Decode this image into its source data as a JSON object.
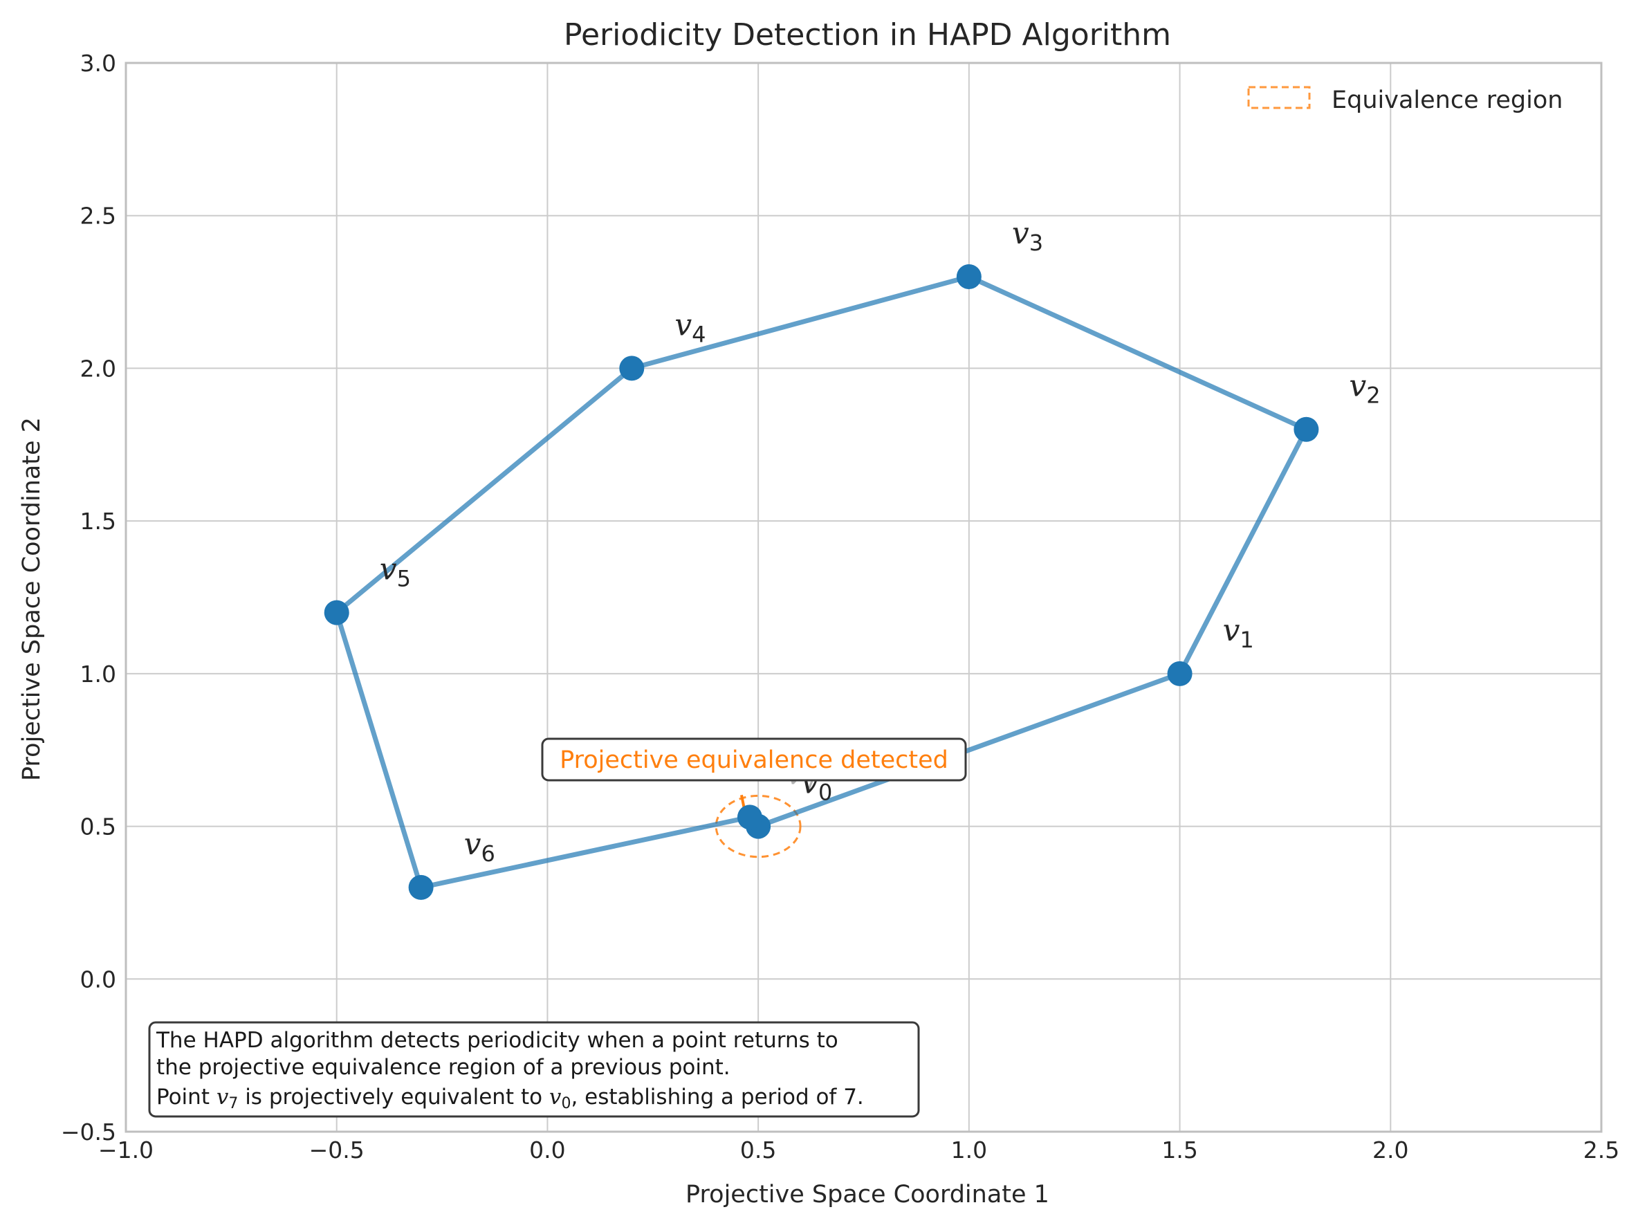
{
  "chart_data": {
    "type": "line",
    "title": "Periodicity Detection in HAPD Algorithm",
    "xlabel": "Projective Space Coordinate 1",
    "ylabel": "Projective Space Coordinate 2",
    "xlim": [
      -1.0,
      2.5
    ],
    "ylim": [
      -0.5,
      3.0
    ],
    "xticks": [
      "−1.0",
      "−0.5",
      "0.0",
      "0.5",
      "1.0",
      "1.5",
      "2.0",
      "2.5"
    ],
    "yticks": [
      "−0.5",
      "0.0",
      "0.5",
      "1.0",
      "1.5",
      "2.0",
      "2.5",
      "3.0"
    ],
    "grid": true,
    "legend_position": "top-right",
    "series": [
      {
        "color": "#1f77b4",
        "points": [
          {
            "label": "v",
            "sub": "0",
            "x": 0.5,
            "y": 0.5
          },
          {
            "label": "v",
            "sub": "1",
            "x": 1.5,
            "y": 1.0
          },
          {
            "label": "v",
            "sub": "2",
            "x": 1.8,
            "y": 1.8
          },
          {
            "label": "v",
            "sub": "3",
            "x": 1.0,
            "y": 2.3
          },
          {
            "label": "v",
            "sub": "4",
            "x": 0.2,
            "y": 2.0
          },
          {
            "label": "v",
            "sub": "5",
            "x": -0.5,
            "y": 1.2
          },
          {
            "label": "v",
            "sub": "6",
            "x": -0.3,
            "y": 0.3
          },
          {
            "label": "v",
            "sub": "7",
            "x": 0.48,
            "y": 0.53
          }
        ]
      }
    ],
    "equivalence_region": {
      "center": [
        0.5,
        0.5
      ],
      "radius": 0.1,
      "color": "#ff7f0e",
      "legend_label": "Equivalence region"
    },
    "annotation": {
      "text": "Projective equivalence detected",
      "color": "#ff7f0e"
    },
    "note": {
      "line1": "The HAPD algorithm detects periodicity when a point returns to",
      "line2": "the projective equivalence region of a previous point.",
      "line3_pre": "Point ",
      "line3_var1": "v",
      "line3_sub1": "7",
      "line3_mid": " is projectively equivalent to ",
      "line3_var2": "v",
      "line3_sub2": "0",
      "line3_post": ", establishing a period of 7."
    }
  }
}
